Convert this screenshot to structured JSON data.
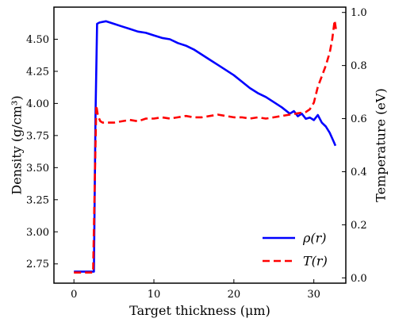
{
  "chart_data": {
    "type": "line",
    "xlabel": "Target thickness (μm)",
    "ylabel_left": "Density (g/cm³)",
    "ylabel_right": "Temperature (eV)",
    "xlim": [
      -2.5,
      34
    ],
    "ylim_left": [
      2.6,
      4.75
    ],
    "ylim_right": [
      -0.02,
      1.02
    ],
    "x_ticks": [
      "0",
      "10",
      "20",
      "30"
    ],
    "y_ticks_left": [
      "2.75",
      "3.00",
      "3.25",
      "3.50",
      "3.75",
      "4.00",
      "4.25",
      "4.50"
    ],
    "y_ticks_right": [
      "0.0",
      "0.2",
      "0.4",
      "0.6",
      "0.8",
      "1.0"
    ],
    "grid": false,
    "legend_position": "bottom-right",
    "series": [
      {
        "name": "ρ(r)",
        "axis": "left",
        "color": "#0000ff",
        "style": "solid",
        "x": [
          0,
          2.5,
          2.7,
          2.9,
          3.2,
          4,
          5,
          6,
          7,
          8,
          9,
          10,
          11,
          12,
          13,
          14,
          15,
          16,
          17,
          18,
          19,
          20,
          21,
          22,
          23,
          24,
          25,
          26,
          27,
          27.5,
          28,
          28.5,
          29,
          29.5,
          30,
          30.5,
          31,
          31.5,
          32,
          32.5,
          32.7
        ],
        "values": [
          2.69,
          2.69,
          3.9,
          4.62,
          4.63,
          4.64,
          4.62,
          4.6,
          4.58,
          4.56,
          4.55,
          4.53,
          4.51,
          4.5,
          4.47,
          4.45,
          4.42,
          4.38,
          4.34,
          4.3,
          4.26,
          4.22,
          4.17,
          4.12,
          4.08,
          4.05,
          4.01,
          3.97,
          3.92,
          3.94,
          3.9,
          3.92,
          3.88,
          3.89,
          3.87,
          3.91,
          3.85,
          3.82,
          3.77,
          3.7,
          3.67
        ]
      },
      {
        "name": "T(r)",
        "axis": "right",
        "color": "#ff0000",
        "style": "dashed",
        "x": [
          0,
          2.4,
          2.6,
          2.8,
          3.0,
          3.3,
          3.6,
          4,
          5,
          6,
          7,
          8,
          9,
          10,
          11,
          12,
          13,
          14,
          15,
          16,
          17,
          18,
          19,
          20,
          21,
          22,
          23,
          24,
          25,
          26,
          27,
          28,
          29,
          29.5,
          30,
          30.5,
          31,
          31.5,
          32,
          32.3,
          32.6,
          32.8
        ],
        "values": [
          0.02,
          0.02,
          0.35,
          0.65,
          0.61,
          0.59,
          0.585,
          0.585,
          0.585,
          0.59,
          0.595,
          0.59,
          0.6,
          0.6,
          0.605,
          0.6,
          0.605,
          0.61,
          0.605,
          0.605,
          0.61,
          0.615,
          0.61,
          0.605,
          0.605,
          0.6,
          0.605,
          0.6,
          0.605,
          0.61,
          0.615,
          0.62,
          0.625,
          0.635,
          0.66,
          0.72,
          0.76,
          0.8,
          0.85,
          0.9,
          0.97,
          0.93
        ]
      }
    ]
  }
}
